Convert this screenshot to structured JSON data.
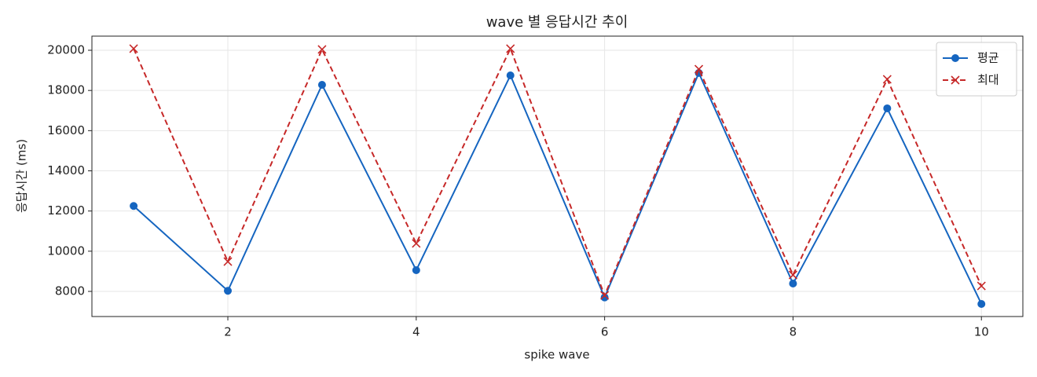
{
  "chart_data": {
    "type": "line",
    "title": "wave 별 응답시간 추이",
    "x_label": "spike wave",
    "y_label": "응답시간 (ms)",
    "x": [
      1,
      2,
      3,
      4,
      5,
      6,
      7,
      8,
      9,
      10
    ],
    "series": [
      {
        "name": "평균",
        "color": "#1565c0",
        "marker": "circle",
        "linestyle": "solid",
        "values": [
          12250,
          8030,
          18280,
          9055,
          18750,
          7700,
          18870,
          8390,
          17110,
          7375
        ]
      },
      {
        "name": "최대",
        "color": "#c62828",
        "marker": "x",
        "linestyle": "dashed",
        "values": [
          20080,
          9485,
          20040,
          10385,
          20080,
          7800,
          19060,
          8820,
          18555,
          8270
        ]
      }
    ],
    "xlim": [
      0.557,
      10.44
    ],
    "xticks": [
      2,
      4,
      6,
      8,
      10
    ],
    "ylim": [
      6749,
      20704
    ],
    "yticks": [
      8000,
      10000,
      12000,
      14000,
      16000,
      18000,
      20000
    ],
    "grid": true,
    "legend": "upper right"
  }
}
